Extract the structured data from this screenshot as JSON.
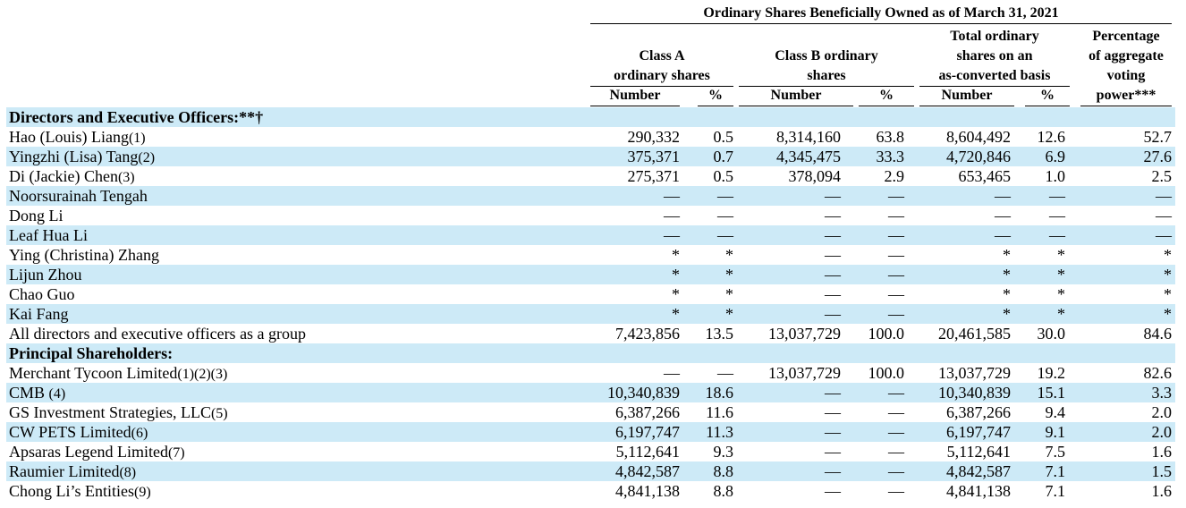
{
  "header": {
    "title": "Ordinary Shares Beneficially Owned as of March 31, 2021",
    "class_a": [
      "Class A",
      "ordinary shares"
    ],
    "class_b": [
      "Class B ordinary",
      "shares"
    ],
    "total": [
      "Total ordinary",
      "shares on an",
      "as-converted basis"
    ],
    "pct_voting": [
      "Percentage",
      "of aggregate",
      "voting",
      "power***"
    ],
    "number": "Number",
    "percent": "%"
  },
  "rows": [
    {
      "label": "Directors and Executive Officers:**†",
      "note": "",
      "bold": true,
      "cells": [
        "",
        "",
        "",
        "",
        "",
        "",
        ""
      ]
    },
    {
      "label": "Hao (Louis) Liang",
      "note": "(1)",
      "bold": false,
      "cells": [
        "290,332",
        "0.5",
        "8,314,160",
        "63.8",
        "8,604,492",
        "12.6",
        "52.7"
      ]
    },
    {
      "label": "Yingzhi (Lisa) Tang",
      "note": "(2)",
      "bold": false,
      "cells": [
        "375,371",
        "0.7",
        "4,345,475",
        "33.3",
        "4,720,846",
        "6.9",
        "27.6"
      ]
    },
    {
      "label": "Di (Jackie) Chen",
      "note": "(3)",
      "bold": false,
      "cells": [
        "275,371",
        "0.5",
        "378,094",
        "2.9",
        "653,465",
        "1.0",
        "2.5"
      ]
    },
    {
      "label": "Noorsurainah Tengah",
      "note": "",
      "bold": false,
      "cells": [
        "—",
        "—",
        "—",
        "—",
        "—",
        "—",
        "—"
      ]
    },
    {
      "label": "Dong Li",
      "note": "",
      "bold": false,
      "cells": [
        "—",
        "—",
        "—",
        "—",
        "—",
        "—",
        "—"
      ]
    },
    {
      "label": "Leaf Hua Li",
      "note": "",
      "bold": false,
      "cells": [
        "—",
        "—",
        "—",
        "—",
        "—",
        "—",
        "—"
      ]
    },
    {
      "label": "Ying (Christina) Zhang",
      "note": "",
      "bold": false,
      "cells": [
        "*",
        "*",
        "—",
        "—",
        "*",
        "*",
        "*"
      ]
    },
    {
      "label": "Lijun Zhou",
      "note": "",
      "bold": false,
      "cells": [
        "*",
        "*",
        "—",
        "—",
        "*",
        "*",
        "*"
      ]
    },
    {
      "label": "Chao Guo",
      "note": "",
      "bold": false,
      "cells": [
        "*",
        "*",
        "—",
        "—",
        "*",
        "*",
        "*"
      ]
    },
    {
      "label": "Kai Fang",
      "note": "",
      "bold": false,
      "cells": [
        "*",
        "*",
        "—",
        "—",
        "*",
        "*",
        "*"
      ]
    },
    {
      "label": "All directors and executive officers as a group",
      "note": "",
      "bold": false,
      "cells": [
        "7,423,856",
        "13.5",
        "13,037,729",
        "100.0",
        "20,461,585",
        "30.0",
        "84.6"
      ]
    },
    {
      "label": "Principal Shareholders:",
      "note": "",
      "bold": true,
      "cells": [
        "",
        "",
        "",
        "",
        "",
        "",
        ""
      ]
    },
    {
      "label": "Merchant Tycoon Limited",
      "note": "(1)(2)(3)",
      "bold": false,
      "cells": [
        "—",
        "—",
        "13,037,729",
        "100.0",
        "13,037,729",
        "19.2",
        "82.6"
      ]
    },
    {
      "label": "CMB ",
      "note": "(4)",
      "bold": false,
      "cells": [
        "10,340,839",
        "18.6",
        "—",
        "—",
        "10,340,839",
        "15.1",
        "3.3"
      ]
    },
    {
      "label": "GS Investment Strategies, LLC",
      "note": "(5)",
      "bold": false,
      "cells": [
        "6,387,266",
        "11.6",
        "—",
        "—",
        "6,387,266",
        "9.4",
        "2.0"
      ]
    },
    {
      "label": "CW PETS Limited",
      "note": "(6)",
      "bold": false,
      "cells": [
        "6,197,747",
        "11.3",
        "—",
        "—",
        "6,197,747",
        "9.1",
        "2.0"
      ]
    },
    {
      "label": "Apsaras Legend Limited",
      "note": "(7)",
      "bold": false,
      "cells": [
        "5,112,641",
        "9.3",
        "—",
        "—",
        "5,112,641",
        "7.5",
        "1.6"
      ]
    },
    {
      "label": "Raumier Limited",
      "note": "(8)",
      "bold": false,
      "cells": [
        "4,842,587",
        "8.8",
        "—",
        "—",
        "4,842,587",
        "7.1",
        "1.5"
      ]
    },
    {
      "label": "Chong Li’s Entities",
      "note": "(9)",
      "bold": false,
      "cells": [
        "4,841,138",
        "8.8",
        "—",
        "—",
        "4,841,138",
        "7.1",
        "1.6"
      ]
    }
  ],
  "colors": {
    "row_shade": "#cdeaf7",
    "text": "#000000"
  }
}
